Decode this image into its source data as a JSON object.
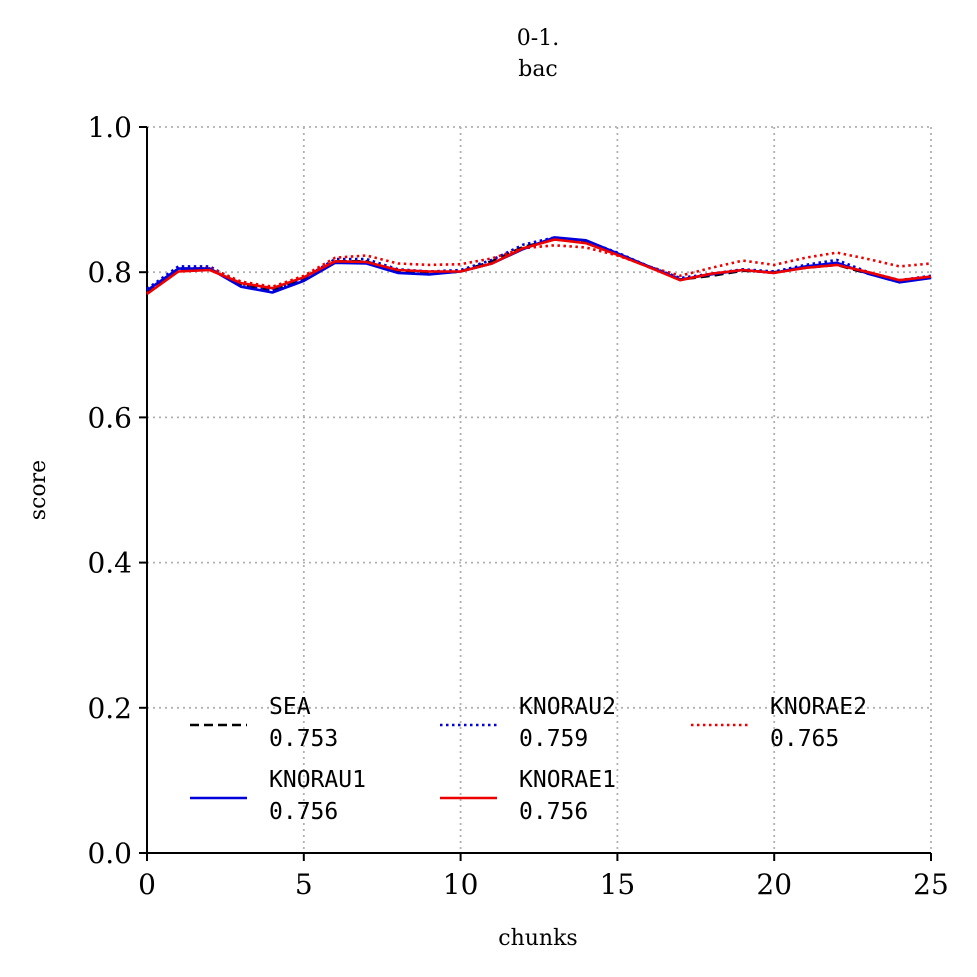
{
  "chart_data": {
    "type": "line",
    "title": "0-1.",
    "subtitle": "bac",
    "xlabel": "chunks",
    "ylabel": "score",
    "xlim": [
      0,
      25
    ],
    "ylim": [
      0,
      1
    ],
    "xticks": [
      "0",
      "5",
      "10",
      "15",
      "20",
      "25"
    ],
    "yticks": [
      "0.0",
      "0.2",
      "0.4",
      "0.6",
      "0.8",
      "1.0"
    ],
    "grid": true,
    "legend_position": "lower-left",
    "x": [
      0,
      1,
      2,
      3,
      4,
      5,
      6,
      7,
      8,
      9,
      10,
      11,
      12,
      13,
      14,
      15,
      16,
      17,
      18,
      19,
      20,
      21,
      22,
      23,
      24,
      25
    ],
    "series": [
      {
        "name": "SEA",
        "score": "0.753",
        "color": "#000000",
        "style": "dashed",
        "values": [
          0.772,
          0.805,
          0.805,
          0.782,
          0.775,
          0.79,
          0.815,
          0.815,
          0.8,
          0.798,
          0.801,
          0.815,
          0.835,
          0.845,
          0.841,
          0.825,
          0.807,
          0.79,
          0.795,
          0.802,
          0.8,
          0.806,
          0.81,
          0.798,
          0.788,
          0.793
        ]
      },
      {
        "name": "KNORAU1",
        "score": "0.756",
        "color": "#0000dd",
        "style": "solid",
        "values": [
          0.775,
          0.805,
          0.805,
          0.78,
          0.772,
          0.788,
          0.813,
          0.812,
          0.799,
          0.797,
          0.801,
          0.812,
          0.832,
          0.848,
          0.844,
          0.826,
          0.808,
          0.79,
          0.797,
          0.803,
          0.799,
          0.808,
          0.813,
          0.798,
          0.786,
          0.792
        ]
      },
      {
        "name": "KNORAU2",
        "score": "0.759",
        "color": "#0000dd",
        "style": "dotted",
        "values": [
          0.777,
          0.808,
          0.808,
          0.784,
          0.775,
          0.792,
          0.818,
          0.818,
          0.804,
          0.801,
          0.803,
          0.817,
          0.838,
          0.848,
          0.843,
          0.827,
          0.808,
          0.792,
          0.798,
          0.804,
          0.801,
          0.81,
          0.817,
          0.8,
          0.789,
          0.795
        ]
      },
      {
        "name": "KNORAE1",
        "score": "0.756",
        "color": "#ee0000",
        "style": "solid",
        "values": [
          0.77,
          0.801,
          0.803,
          0.785,
          0.778,
          0.793,
          0.815,
          0.814,
          0.803,
          0.801,
          0.801,
          0.812,
          0.833,
          0.845,
          0.84,
          0.824,
          0.807,
          0.789,
          0.798,
          0.803,
          0.799,
          0.806,
          0.81,
          0.8,
          0.789,
          0.794
        ]
      },
      {
        "name": "KNORAE2",
        "score": "0.765",
        "color": "#ee0000",
        "style": "dotted",
        "values": [
          0.771,
          0.804,
          0.806,
          0.787,
          0.78,
          0.795,
          0.82,
          0.823,
          0.812,
          0.81,
          0.811,
          0.819,
          0.833,
          0.837,
          0.834,
          0.823,
          0.808,
          0.795,
          0.806,
          0.816,
          0.81,
          0.82,
          0.827,
          0.818,
          0.808,
          0.812
        ]
      }
    ]
  }
}
